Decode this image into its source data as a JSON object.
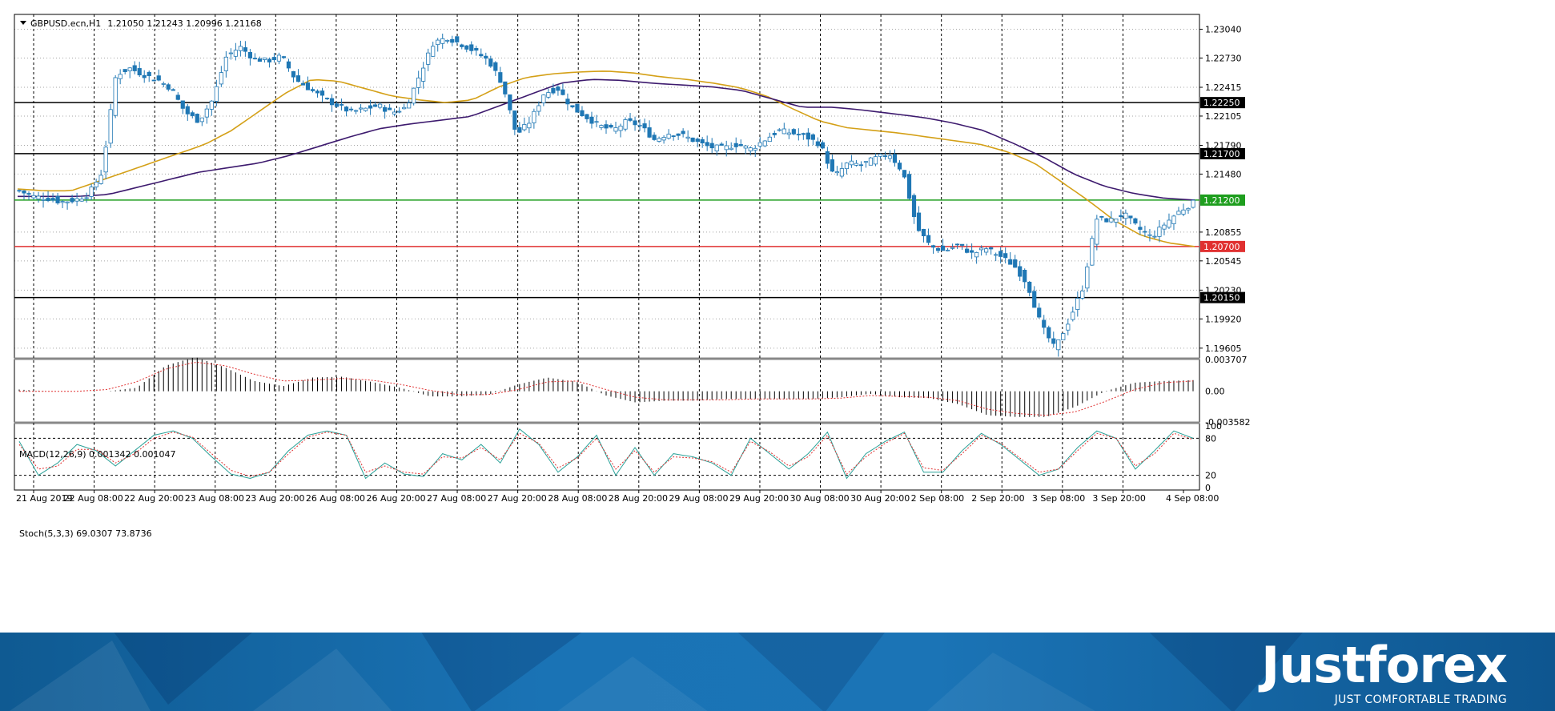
{
  "header": {
    "symbol_label": "GBPUSD.ecn,H1",
    "ohlc": "1.21050 1.21243 1.20996 1.21168",
    "macd_label": "MACD(12,26,9) 0.001342 0.001047",
    "stoch_label": "Stoch(5,3,3) 69.0307 73.8736"
  },
  "colors": {
    "bull_body": "#ffffff",
    "bear_body": "#1f77b4",
    "candle_line": "#1f77b4",
    "ma_fast": "#d4a017",
    "ma_slow": "#3d1a6e",
    "grid": "#000000",
    "macd_signal": "#e03030",
    "stoch_main": "#2aa198",
    "stoch_signal": "#e03030",
    "support_green": "#1e9e1e",
    "support_red": "#e03030"
  },
  "chart_data": [
    {
      "type": "candlestick",
      "title": "GBPUSD.ecn,H1",
      "x_tick_labels": [
        "21 Aug 2019",
        "22 Aug 08:00",
        "22 Aug 20:00",
        "23 Aug 08:00",
        "23 Aug 20:00",
        "26 Aug 08:00",
        "26 Aug 20:00",
        "27 Aug 08:00",
        "27 Aug 20:00",
        "28 Aug 08:00",
        "28 Aug 20:00",
        "29 Aug 08:00",
        "29 Aug 20:00",
        "30 Aug 08:00",
        "30 Aug 20:00",
        "2 Sep 08:00",
        "2 Sep 20:00",
        "3 Sep 08:00",
        "3 Sep 20:00",
        "4 Sep 08:00"
      ],
      "y_tick_labels": [
        "1.23040",
        "1.22730",
        "1.22415",
        "1.22105",
        "1.21790",
        "1.21480",
        "1.20855",
        "1.20545",
        "1.20230",
        "1.19920",
        "1.19605"
      ],
      "ylim": [
        1.195,
        1.232
      ],
      "grid": "dotted vertical and horizontal",
      "horizontal_levels": [
        {
          "label": "1.22250",
          "value": 1.2225,
          "color": "#000000"
        },
        {
          "label": "1.21700",
          "value": 1.217,
          "color": "#000000"
        },
        {
          "label": "1.21200",
          "value": 1.212,
          "color": "#1e9e1e"
        },
        {
          "label": "1.20700",
          "value": 1.207,
          "color": "#e03030"
        },
        {
          "label": "1.20150",
          "value": 1.2015,
          "color": "#000000"
        }
      ],
      "close_anchors": [
        1.213,
        1.2124,
        1.2122,
        1.2118,
        1.212,
        1.2126,
        1.215,
        1.2255,
        1.2262,
        1.2255,
        1.225,
        1.224,
        1.2215,
        1.2205,
        1.2228,
        1.2275,
        1.2285,
        1.2272,
        1.227,
        1.2275,
        1.225,
        1.224,
        1.223,
        1.2222,
        1.2215,
        1.2218,
        1.2222,
        1.2214,
        1.222,
        1.2255,
        1.229,
        1.2295,
        1.2288,
        1.228,
        1.227,
        1.2245,
        1.219,
        1.2205,
        1.2235,
        1.224,
        1.222,
        1.221,
        1.22,
        1.2195,
        1.2205,
        1.22,
        1.2185,
        1.2192,
        1.219,
        1.2183,
        1.2177,
        1.2176,
        1.218,
        1.2175,
        1.2185,
        1.2195,
        1.2192,
        1.2188,
        1.218,
        1.2145,
        1.216,
        1.2158,
        1.2165,
        1.217,
        1.215,
        1.209,
        1.207,
        1.2065,
        1.2072,
        1.2062,
        1.2068,
        1.206,
        1.205,
        1.203,
        1.1985,
        1.196,
        1.199,
        1.2025,
        1.21,
        1.2098,
        1.2105,
        1.209,
        1.208,
        1.2095,
        1.2108,
        1.2117
      ],
      "moving_averages": [
        {
          "name": "fast",
          "color": "#d4a017",
          "points": [
            1.2132,
            1.213,
            1.213,
            1.214,
            1.215,
            1.216,
            1.217,
            1.218,
            1.2195,
            1.2215,
            1.2235,
            1.225,
            1.2248,
            1.224,
            1.2232,
            1.2228,
            1.2225,
            1.2228,
            1.2242,
            1.2252,
            1.2256,
            1.2258,
            1.2259,
            1.2257,
            1.2253,
            1.225,
            1.2246,
            1.2241,
            1.2232,
            1.2218,
            1.2205,
            1.2198,
            1.2195,
            1.2192,
            1.2188,
            1.2184,
            1.218,
            1.2172,
            1.216,
            1.214,
            1.212,
            1.2098,
            1.2082,
            1.2074,
            1.207
          ]
        },
        {
          "name": "slow",
          "color": "#3d1a6e",
          "points": [
            1.2124,
            1.2124,
            1.2124,
            1.2126,
            1.2134,
            1.2142,
            1.215,
            1.2155,
            1.216,
            1.2168,
            1.2178,
            1.2188,
            1.2197,
            1.2202,
            1.2206,
            1.221,
            1.2222,
            1.2234,
            1.2246,
            1.225,
            1.2249,
            1.2246,
            1.2244,
            1.2242,
            1.2238,
            1.2229,
            1.222,
            1.222,
            1.2217,
            1.2213,
            1.2209,
            1.2203,
            1.2195,
            1.2181,
            1.2166,
            1.2148,
            1.2135,
            1.2127,
            1.2122,
            1.212
          ]
        }
      ]
    },
    {
      "type": "bar",
      "title": "MACD(12,26,9) 0.001342 0.001047",
      "y_tick_labels": [
        "0.003707",
        "0.00",
        "-0.003582"
      ],
      "ylim": [
        -0.003582,
        0.003707
      ],
      "histogram_anchors": [
        0.0002,
        0.0,
        0.0,
        0.0,
        0.0004,
        0.003,
        0.004,
        0.0028,
        0.0012,
        0.0006,
        0.0016,
        0.0017,
        0.0011,
        0.0004,
        -0.0006,
        -0.0006,
        -0.0004,
        0.0008,
        0.0016,
        0.0011,
        -0.0005,
        -0.0013,
        -0.0011,
        -0.0011,
        -0.0009,
        -0.0009,
        -0.0009,
        -0.0009,
        -0.0007,
        -0.0003,
        -0.0007,
        -0.0008,
        -0.0015,
        -0.0028,
        -0.003,
        -0.003,
        -0.0018,
        0.0,
        0.001,
        0.0012,
        0.0013
      ],
      "signal_anchors": [
        0.0,
        0.0,
        0.0,
        0.0002,
        0.0011,
        0.0026,
        0.0034,
        0.003,
        0.002,
        0.0012,
        0.0013,
        0.0015,
        0.0013,
        0.0008,
        0.0001,
        -0.0004,
        -0.0004,
        0.0002,
        0.0011,
        0.0012,
        0.0002,
        -0.0007,
        -0.001,
        -0.001,
        -0.001,
        -0.0009,
        -0.0009,
        -0.0009,
        -0.0008,
        -0.0005,
        -0.0006,
        -0.0007,
        -0.0011,
        -0.0021,
        -0.0026,
        -0.0028,
        -0.0024,
        -0.0012,
        0.0002,
        0.001,
        0.0012
      ]
    },
    {
      "type": "line",
      "title": "Stoch(5,3,3) 69.0307 73.8736",
      "y_tick_labels": [
        "100",
        "80",
        "20",
        "0"
      ],
      "ylim": [
        0,
        100
      ],
      "levels": [
        20,
        80
      ],
      "main_anchors": [
        75,
        20,
        40,
        70,
        60,
        35,
        60,
        85,
        92,
        80,
        50,
        22,
        15,
        25,
        60,
        85,
        92,
        85,
        15,
        40,
        22,
        18,
        55,
        45,
        70,
        40,
        95,
        70,
        25,
        50,
        85,
        20,
        65,
        20,
        55,
        50,
        40,
        20,
        80,
        55,
        30,
        55,
        90,
        15,
        55,
        75,
        90,
        25,
        25,
        60,
        88,
        70,
        45,
        20,
        30,
        65,
        92,
        80,
        30,
        60,
        92,
        80
      ],
      "signal_anchors": [
        70,
        30,
        35,
        62,
        62,
        40,
        55,
        80,
        90,
        82,
        55,
        28,
        18,
        25,
        55,
        82,
        90,
        85,
        25,
        35,
        25,
        22,
        50,
        48,
        65,
        45,
        88,
        72,
        32,
        48,
        80,
        30,
        60,
        25,
        50,
        48,
        42,
        25,
        75,
        58,
        35,
        50,
        85,
        22,
        50,
        72,
        88,
        32,
        28,
        55,
        85,
        72,
        48,
        25,
        30,
        60,
        88,
        80,
        35,
        55,
        88,
        78
      ]
    }
  ],
  "branding": {
    "name": "Justforex",
    "tagline": "JUST COMFORTABLE TRADING"
  }
}
